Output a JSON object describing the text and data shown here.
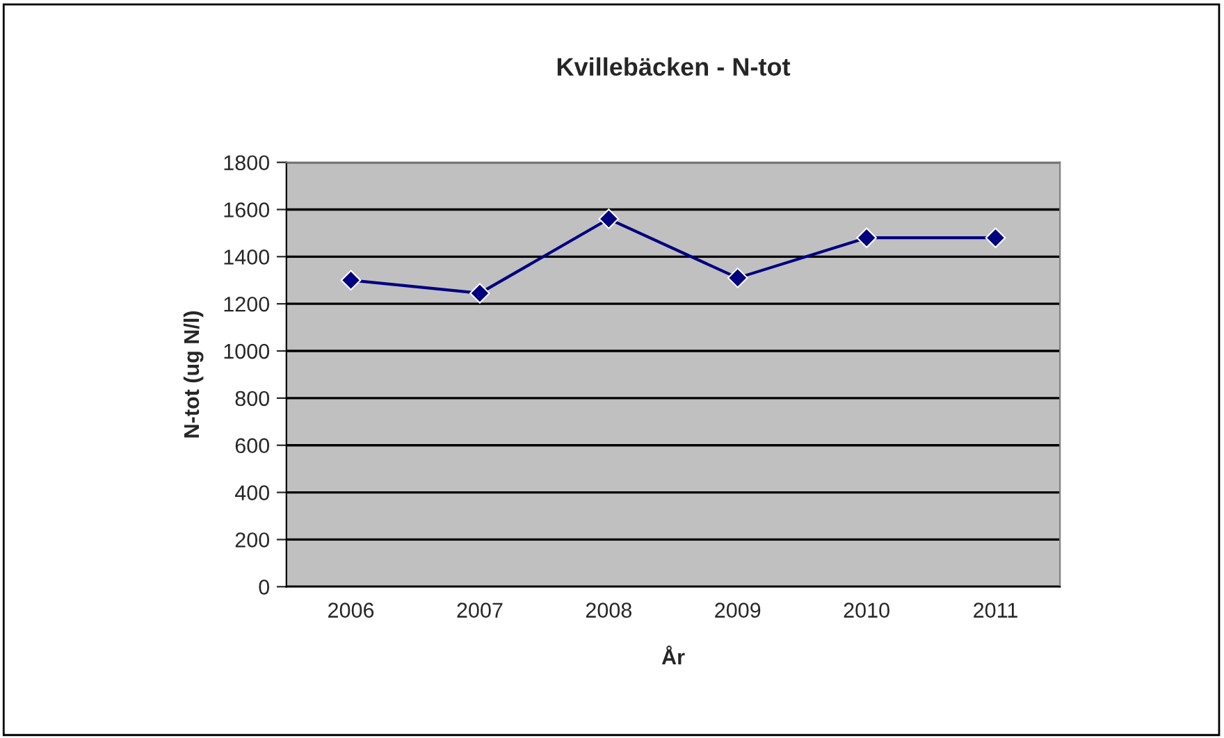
{
  "chart_data": {
    "type": "line",
    "title": "Kvillebäcken - N-tot",
    "xlabel": "År",
    "ylabel": "N-tot (ug N/l)",
    "categories": [
      "2006",
      "2007",
      "2008",
      "2009",
      "2010",
      "2011"
    ],
    "series": [
      {
        "color": "#000080",
        "values": [
          1300,
          1245,
          1560,
          1310,
          1480,
          1480
        ]
      }
    ],
    "ylim": [
      0,
      1800
    ],
    "yticks": [
      0,
      200,
      400,
      600,
      800,
      1000,
      1200,
      1400,
      1600,
      1800
    ],
    "grid": "y",
    "marker": "diamond",
    "line_style": "solid",
    "legend": false
  }
}
